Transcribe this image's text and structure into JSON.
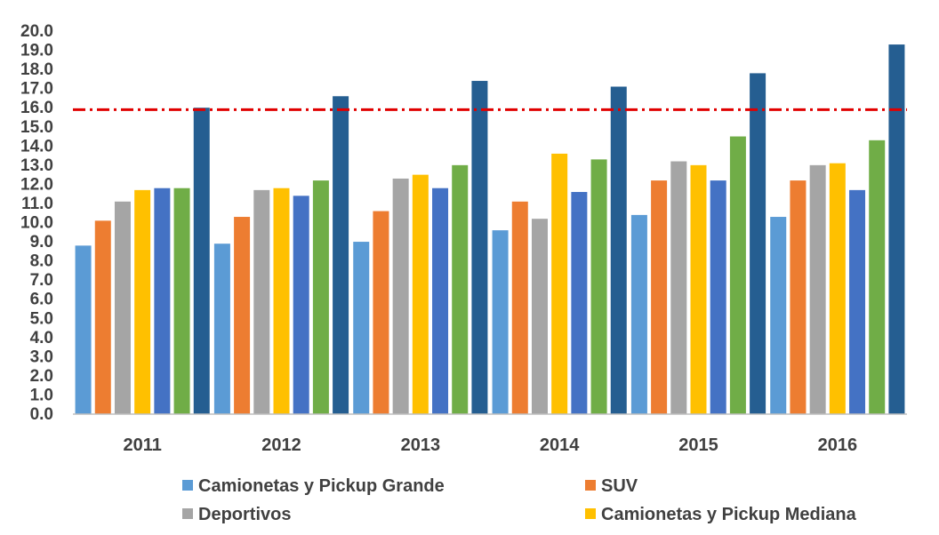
{
  "chart_data": {
    "type": "bar",
    "title": "",
    "xlabel": "",
    "ylabel": "",
    "ylim": [
      0,
      20
    ],
    "ytick_step": 1,
    "ytick_format": "0.0",
    "grid": false,
    "categories": [
      "2011",
      "2012",
      "2013",
      "2014",
      "2015",
      "2016"
    ],
    "series": [
      {
        "name": "Camionetas y Pickup Grande",
        "color": "#5B9BD5",
        "values": [
          8.8,
          8.9,
          9.0,
          9.6,
          10.4,
          10.3
        ]
      },
      {
        "name": "SUV",
        "color": "#ED7D31",
        "values": [
          10.1,
          10.3,
          10.6,
          11.1,
          12.2,
          12.2
        ]
      },
      {
        "name": "Deportivos",
        "color": "#A5A5A5",
        "values": [
          11.1,
          11.7,
          12.3,
          10.2,
          13.2,
          13.0
        ]
      },
      {
        "name": "Camionetas y Pickup Mediana",
        "color": "#FFC000",
        "values": [
          11.7,
          11.8,
          12.5,
          13.6,
          13.0,
          13.1
        ]
      },
      {
        "name": "",
        "color": "#4472C4",
        "values": [
          11.8,
          11.4,
          11.8,
          11.6,
          12.2,
          11.7
        ]
      },
      {
        "name": "",
        "color": "#70AD47",
        "values": [
          11.8,
          12.2,
          13.0,
          13.3,
          14.5,
          14.3
        ]
      },
      {
        "name": "",
        "color": "#255E91",
        "values": [
          16.0,
          16.6,
          17.4,
          17.1,
          17.8,
          19.3
        ]
      }
    ],
    "reference_line": {
      "value": 15.9,
      "color": "#E00000",
      "style": "dash-dot"
    },
    "legend": {
      "placement": "bottom",
      "entries": [
        {
          "label": "Camionetas y Pickup Grande",
          "color": "#5B9BD5"
        },
        {
          "label": "SUV",
          "color": "#ED7D31"
        },
        {
          "label": "Deportivos",
          "color": "#A5A5A5"
        },
        {
          "label": "Camionetas y Pickup Mediana",
          "color": "#FFC000"
        }
      ]
    }
  }
}
